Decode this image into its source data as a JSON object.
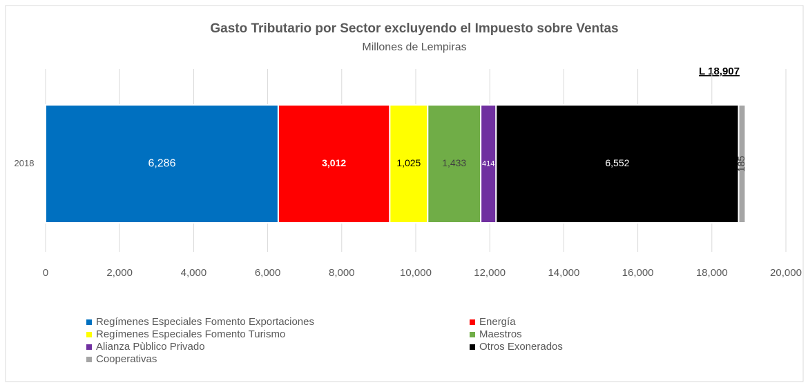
{
  "chart_data": {
    "type": "stacked_bar_horizontal",
    "title": "Gasto Tributario por Sector excluyendo el Impuesto sobre Ventas",
    "subtitle": "Millones de Lempiras",
    "annotation": "L 18,907",
    "categories": [
      "2018"
    ],
    "series": [
      {
        "name": "Regímenes Especiales Fomento Exportaciones",
        "color": "#0070c0",
        "values": [
          6286
        ],
        "value_labels": [
          "6,286"
        ]
      },
      {
        "name": "Energía",
        "color": "#ff0000",
        "values": [
          3012
        ],
        "value_labels": [
          "3,012"
        ]
      },
      {
        "name": "Regímenes Especiales Fomento Turismo",
        "color": "#ffff00",
        "values": [
          1025
        ],
        "value_labels": [
          "1,025"
        ]
      },
      {
        "name": "Maestros",
        "color": "#70ad47",
        "values": [
          1433
        ],
        "value_labels": [
          "1,433"
        ]
      },
      {
        "name": "Alianza Pùblico Privado",
        "color": "#7030a0",
        "values": [
          414
        ],
        "value_labels": [
          "414"
        ]
      },
      {
        "name": "Otros Exonerados",
        "color": "#000000",
        "values": [
          6552
        ],
        "value_labels": [
          "6,552"
        ]
      },
      {
        "name": "Cooperativas",
        "color": "#a5a5a5",
        "values": [
          185
        ],
        "value_labels": [
          "185"
        ]
      }
    ],
    "xlim": [
      0,
      20000
    ],
    "xticks": [
      0,
      {
        "value": 2000,
        "label": "2,000"
      },
      {
        "value": 4000,
        "label": "4,000"
      },
      {
        "value": 6000,
        "label": "6,000"
      },
      {
        "value": 8000,
        "label": "8,000"
      },
      {
        "value": 10000,
        "label": "10,000"
      },
      {
        "value": 12000,
        "label": "12,000"
      },
      {
        "value": 14000,
        "label": "14,000"
      },
      {
        "value": 16000,
        "label": "16,000"
      },
      {
        "value": 18000,
        "label": "18,000"
      },
      {
        "value": 20000,
        "label": "20,000"
      }
    ],
    "grid": true,
    "legend": "bottom"
  }
}
